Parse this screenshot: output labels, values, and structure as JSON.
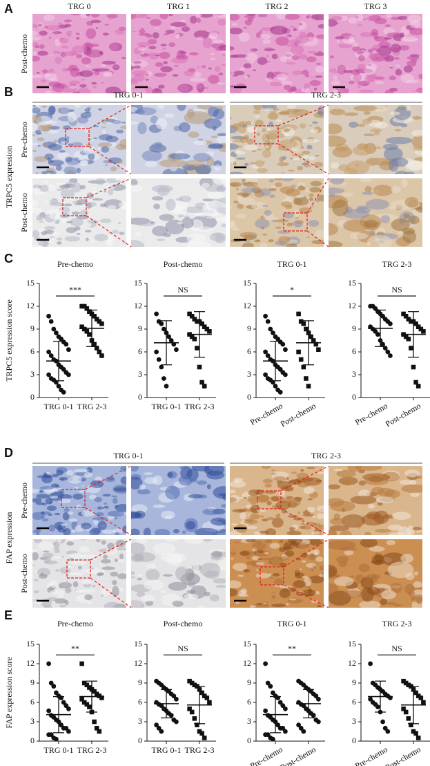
{
  "panel_labels": [
    "A",
    "B",
    "C",
    "D",
    "E"
  ],
  "panel_a": {
    "columns": [
      "TRG 0",
      "TRG 1",
      "TRG 2",
      "TRG 3"
    ],
    "row_label": "Post-chemo"
  },
  "panel_b": {
    "side_label": "TRPC5 expression",
    "groups": [
      "TRG 0-1",
      "TRG 2-3"
    ],
    "rows": [
      "Pre-chemo",
      "Post-chemo"
    ]
  },
  "panel_d": {
    "side_label": "FAP expression",
    "groups": [
      "TRG 0-1",
      "TRG 2-3"
    ],
    "rows": [
      "Pre-chemo",
      "Post-chemo"
    ]
  },
  "chart_data": [
    {
      "type": "strip",
      "title": "Pre-chemo",
      "ylabel": "TRPC5 expression score",
      "categories": [
        "TRG 0-1",
        "TRG 2-3"
      ],
      "points": [
        [
          10.7,
          10,
          9,
          8.5,
          8,
          7.7,
          7.3,
          7,
          6.3,
          6,
          5.5,
          5,
          4.8,
          4.3,
          4,
          3.7,
          3.3,
          3,
          3,
          2.5,
          2.3,
          2,
          1.5,
          1,
          0.7
        ],
        [
          12,
          12,
          11.7,
          11.3,
          11,
          10.7,
          10.3,
          10,
          9.7,
          9.3,
          9,
          8.7,
          8.3,
          7.5,
          7,
          6.5,
          6,
          5.5
        ]
      ],
      "mean": [
        4.8,
        9.1
      ],
      "sd": [
        2.6,
        2.4
      ],
      "markers": [
        "circle",
        "square"
      ],
      "significance": "***",
      "ylim": [
        0,
        15
      ],
      "yticks": [
        0,
        3,
        6,
        9,
        12,
        15
      ]
    },
    {
      "type": "strip",
      "title": "Post-chemo",
      "categories": [
        "TRG 0-1",
        "TRG 2-3"
      ],
      "points": [
        [
          11,
          10,
          9.7,
          9,
          8.5,
          8,
          7.5,
          7,
          6.3,
          6,
          5,
          4,
          2.5,
          1.5
        ],
        [
          11,
          10.7,
          10.3,
          10,
          10,
          9.7,
          9.3,
          9,
          8.7,
          8.3,
          8,
          7.7,
          6.5,
          4,
          2,
          1.5
        ]
      ],
      "mean": [
        7.2,
        8.3
      ],
      "sd": [
        2.9,
        3
      ],
      "markers": [
        "circle",
        "square"
      ],
      "significance": "NS",
      "ylim": [
        0,
        15
      ],
      "yticks": [
        0,
        3,
        6,
        9,
        12,
        15
      ]
    },
    {
      "type": "strip",
      "title": "TRG 0-1",
      "categories": [
        "Pre-chemo",
        "Post-chemo"
      ],
      "points": [
        [
          10.7,
          10,
          9,
          8.5,
          8,
          7.7,
          7.3,
          7,
          6.3,
          6,
          5.5,
          5,
          4.8,
          4.3,
          4,
          3.7,
          3.3,
          3,
          3,
          2.5,
          2.3,
          2,
          1.5,
          1,
          0.7
        ],
        [
          11,
          10,
          9.7,
          9,
          8.5,
          8,
          7.5,
          7,
          6.3,
          6,
          5,
          4,
          2.5,
          1.5
        ]
      ],
      "mean": [
        4.8,
        7.2
      ],
      "sd": [
        2.6,
        2.9
      ],
      "markers": [
        "circle",
        "square"
      ],
      "significance": "*",
      "ylim": [
        0,
        15
      ],
      "yticks": [
        0,
        3,
        6,
        9,
        12,
        15
      ]
    },
    {
      "type": "strip",
      "title": "TRG 2-3",
      "categories": [
        "Pre-chemo",
        "Post-chemo"
      ],
      "points": [
        [
          12,
          12,
          11.7,
          11.3,
          11,
          10.7,
          10.3,
          10,
          9.7,
          9.3,
          9,
          8.7,
          8.3,
          7.5,
          7,
          6.5,
          6,
          5.5
        ],
        [
          11,
          10.7,
          10.3,
          10,
          10,
          9.7,
          9.3,
          9,
          8.7,
          8.3,
          8,
          7.7,
          6.5,
          4,
          2,
          1.5
        ]
      ],
      "mean": [
        9.1,
        8.3
      ],
      "sd": [
        2.4,
        3
      ],
      "markers": [
        "circle",
        "square"
      ],
      "significance": "NS",
      "ylim": [
        0,
        15
      ],
      "yticks": [
        0,
        3,
        6,
        9,
        12,
        15
      ]
    },
    {
      "type": "strip",
      "title": "Pre-chemo",
      "ylabel": "FAP expression score",
      "categories": [
        "TRG 0-1",
        "TRG 2-3"
      ],
      "points": [
        [
          12,
          9,
          8.5,
          7.5,
          7,
          6.7,
          6,
          5.5,
          5,
          4.7,
          4,
          3.7,
          3.3,
          3,
          2.5,
          2,
          2,
          1.5,
          1,
          1,
          0.5,
          0.3
        ],
        [
          12,
          9,
          8.7,
          8.3,
          8,
          7.7,
          7.3,
          7,
          6.7,
          6.5,
          6,
          5.7,
          5.3,
          4.5,
          3,
          2,
          1.5
        ]
      ],
      "mean": [
        4.1,
        6.9
      ],
      "sd": [
        2.8,
        2.4
      ],
      "markers": [
        "circle",
        "square"
      ],
      "significance": "**",
      "ylim": [
        0,
        15
      ],
      "yticks": [
        0,
        3,
        6,
        9,
        12,
        15
      ]
    },
    {
      "type": "strip",
      "title": "Post-chemo",
      "categories": [
        "TRG 0-1",
        "TRG 2-3"
      ],
      "points": [
        [
          9.3,
          9,
          8.7,
          8.3,
          8,
          7.7,
          7.3,
          7,
          6.5,
          6,
          5.7,
          5.5,
          5,
          4.7,
          4.3,
          4,
          3.3,
          3,
          2.5,
          2,
          1.5
        ],
        [
          9.3,
          9,
          8.7,
          8.5,
          8,
          7.5,
          7,
          6.7,
          6,
          5,
          4.5,
          3.5,
          2.5,
          1.5,
          1.2,
          0.5
        ]
      ],
      "mean": [
        5.8,
        5.6
      ],
      "sd": [
        2.2,
        2.9
      ],
      "markers": [
        "circle",
        "square"
      ],
      "significance": "NS",
      "ylim": [
        0,
        15
      ],
      "yticks": [
        0,
        3,
        6,
        9,
        12,
        15
      ]
    },
    {
      "type": "strip",
      "title": "TRG 0-1",
      "categories": [
        "Pre-chemo",
        "Post-chemo"
      ],
      "points": [
        [
          12,
          9,
          8.5,
          7.5,
          7,
          6.7,
          6,
          5.5,
          5,
          4.7,
          4,
          3.7,
          3.3,
          3,
          2.5,
          2,
          2,
          1.5,
          1,
          1,
          0.5,
          0.3
        ],
        [
          9.3,
          9,
          8.7,
          8.3,
          8,
          7.7,
          7.3,
          7,
          6.5,
          6,
          5.7,
          5.5,
          5,
          4.7,
          4.3,
          4,
          3.3,
          3,
          2.5,
          2,
          1.5
        ]
      ],
      "mean": [
        4.1,
        5.8
      ],
      "sd": [
        2.8,
        2.2
      ],
      "markers": [
        "circle",
        "circle"
      ],
      "significance": "**",
      "ylim": [
        0,
        15
      ],
      "yticks": [
        0,
        3,
        6,
        9,
        12,
        15
      ]
    },
    {
      "type": "strip",
      "title": "TRG 2-3",
      "categories": [
        "Pre-chemo",
        "Post-chemo"
      ],
      "points": [
        [
          12,
          9,
          8.7,
          8.3,
          8,
          7.7,
          7.3,
          7,
          6.7,
          6.5,
          6,
          5.7,
          5.3,
          4.5,
          3,
          2,
          1.5
        ],
        [
          9.3,
          9,
          8.7,
          8.5,
          8,
          7.5,
          7,
          6.7,
          6,
          5,
          4.5,
          3.5,
          2.5,
          1.5,
          1.2,
          0.5
        ]
      ],
      "mean": [
        6.9,
        5.6
      ],
      "sd": [
        2.4,
        2.9
      ],
      "markers": [
        "circle",
        "square"
      ],
      "significance": "NS",
      "ylim": [
        0,
        15
      ],
      "yticks": [
        0,
        3,
        6,
        9,
        12,
        15
      ]
    }
  ]
}
